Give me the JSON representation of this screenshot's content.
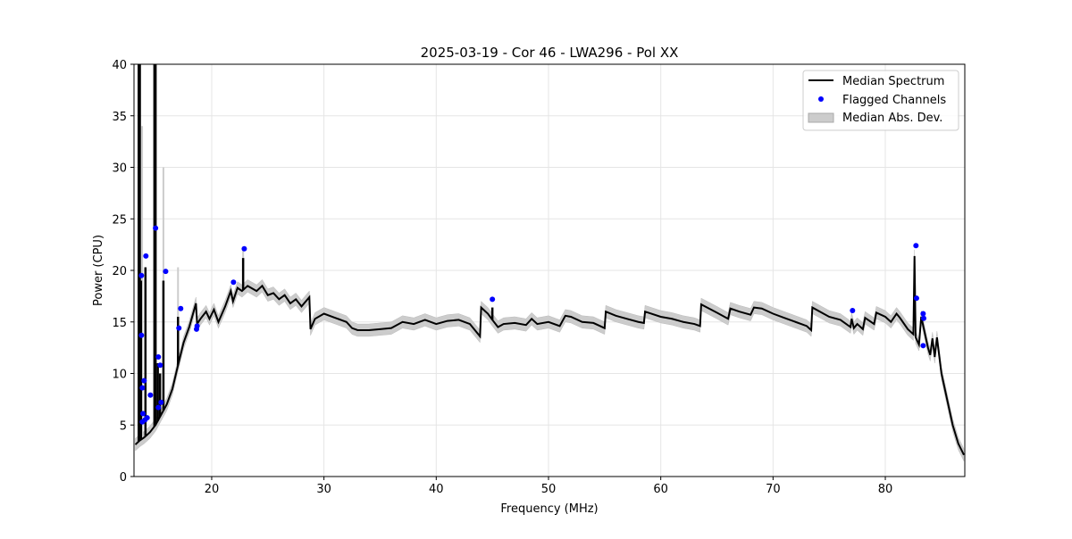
{
  "chart_data": {
    "type": "line",
    "title": "2025-03-19 - Cor 46 - LWA296 - Pol XX",
    "xlabel": "Frequency (MHz)",
    "ylabel": "Power (CPU)",
    "xlim": [
      13.08,
      87.08
    ],
    "ylim": [
      0,
      40
    ],
    "xticks": [
      20,
      30,
      40,
      50,
      60,
      70,
      80
    ],
    "yticks": [
      0,
      5,
      10,
      15,
      20,
      25,
      30,
      35,
      40
    ],
    "grid": true,
    "legend_position": "top-right",
    "legend": [
      "Median Spectrum",
      "Flagged Channels",
      "Median Abs. Dev."
    ],
    "colors": {
      "median": "#000000",
      "flagged": "#0000ff",
      "mad": "#cccccc"
    },
    "mad_halfwidth": 0.6,
    "series": [
      {
        "name": "Median Spectrum",
        "points": [
          [
            13.2,
            3.1
          ],
          [
            13.6,
            3.5
          ],
          [
            14.0,
            3.8
          ],
          [
            14.5,
            4.3
          ],
          [
            15.0,
            5.0
          ],
          [
            15.5,
            6.0
          ],
          [
            16.0,
            7.0
          ],
          [
            16.5,
            8.5
          ],
          [
            17.0,
            10.8
          ],
          [
            17.5,
            13.0
          ],
          [
            18.0,
            14.5
          ],
          [
            18.6,
            16.8
          ],
          [
            18.7,
            14.8
          ],
          [
            19.0,
            15.3
          ],
          [
            19.5,
            16.0
          ],
          [
            19.8,
            15.3
          ],
          [
            20.2,
            16.2
          ],
          [
            20.6,
            15.0
          ],
          [
            21.2,
            16.5
          ],
          [
            21.7,
            18.0
          ],
          [
            21.9,
            17.0
          ],
          [
            22.3,
            18.3
          ],
          [
            22.7,
            18.0
          ],
          [
            23.2,
            18.5
          ],
          [
            24,
            18.0
          ],
          [
            24.5,
            18.5
          ],
          [
            25,
            17.6
          ],
          [
            25.5,
            17.8
          ],
          [
            26,
            17.2
          ],
          [
            26.5,
            17.6
          ],
          [
            27,
            16.8
          ],
          [
            27.5,
            17.2
          ],
          [
            28,
            16.5
          ],
          [
            28.7,
            17.4
          ],
          [
            28.8,
            14.3
          ],
          [
            29.2,
            15.3
          ],
          [
            30,
            15.8
          ],
          [
            31,
            15.4
          ],
          [
            32,
            15.0
          ],
          [
            32.5,
            14.4
          ],
          [
            33,
            14.2
          ],
          [
            34,
            14.2
          ],
          [
            35,
            14.3
          ],
          [
            36,
            14.4
          ],
          [
            37,
            15.0
          ],
          [
            38,
            14.8
          ],
          [
            39,
            15.2
          ],
          [
            40,
            14.8
          ],
          [
            41,
            15.1
          ],
          [
            42,
            15.2
          ],
          [
            43,
            14.8
          ],
          [
            43.9,
            13.6
          ],
          [
            44.0,
            16.4
          ],
          [
            44.6,
            15.8
          ],
          [
            45.0,
            15.2
          ],
          [
            45.5,
            14.5
          ],
          [
            46,
            14.8
          ],
          [
            47,
            14.9
          ],
          [
            48,
            14.7
          ],
          [
            48.5,
            15.3
          ],
          [
            49,
            14.8
          ],
          [
            50,
            15.0
          ],
          [
            51,
            14.6
          ],
          [
            51.5,
            15.6
          ],
          [
            52,
            15.5
          ],
          [
            53,
            15.0
          ],
          [
            54,
            14.9
          ],
          [
            55,
            14.4
          ],
          [
            55.1,
            16.0
          ],
          [
            56,
            15.6
          ],
          [
            57,
            15.3
          ],
          [
            58,
            15.0
          ],
          [
            58.5,
            14.9
          ],
          [
            58.6,
            16.0
          ],
          [
            60,
            15.5
          ],
          [
            61,
            15.3
          ],
          [
            62,
            15.0
          ],
          [
            63,
            14.8
          ],
          [
            63.5,
            14.6
          ],
          [
            63.6,
            16.7
          ],
          [
            65,
            15.9
          ],
          [
            66,
            15.3
          ],
          [
            66.2,
            16.3
          ],
          [
            67,
            16.0
          ],
          [
            68,
            15.7
          ],
          [
            68.3,
            16.4
          ],
          [
            69,
            16.3
          ],
          [
            70,
            15.8
          ],
          [
            71,
            15.4
          ],
          [
            72,
            15.0
          ],
          [
            73,
            14.6
          ],
          [
            73.4,
            14.2
          ],
          [
            73.5,
            16.4
          ],
          [
            75,
            15.5
          ],
          [
            76,
            15.2
          ],
          [
            76.9,
            14.5
          ],
          [
            77,
            15.3
          ],
          [
            77.2,
            14.4
          ],
          [
            77.5,
            14.8
          ],
          [
            78,
            14.3
          ],
          [
            78.2,
            15.4
          ],
          [
            79,
            14.8
          ],
          [
            79.2,
            15.9
          ],
          [
            80,
            15.5
          ],
          [
            80.5,
            15.0
          ],
          [
            81,
            15.8
          ],
          [
            81.3,
            15.4
          ],
          [
            82,
            14.3
          ],
          [
            82.5,
            13.8
          ],
          [
            82.6,
            21.4
          ],
          [
            82.7,
            13.5
          ],
          [
            83.0,
            12.8
          ],
          [
            83.2,
            15.5
          ],
          [
            83.8,
            12.5
          ],
          [
            84.0,
            11.8
          ],
          [
            84.2,
            13.4
          ],
          [
            84.4,
            11.6
          ],
          [
            84.6,
            13.5
          ],
          [
            85,
            10
          ],
          [
            85.5,
            7.5
          ],
          [
            86,
            5
          ],
          [
            86.5,
            3.2
          ],
          [
            87.0,
            2.1
          ]
        ]
      },
      {
        "name": "Median spikes",
        "points": [
          [
            13.5,
            40
          ],
          [
            13.6,
            40
          ],
          [
            13.7,
            19.0
          ],
          [
            14.1,
            20.3
          ],
          [
            14.9,
            40
          ],
          [
            15.0,
            40
          ],
          [
            15.2,
            11.0
          ],
          [
            15.4,
            10.0
          ],
          [
            15.7,
            19.0
          ],
          [
            17.0,
            15.5
          ],
          [
            22.8,
            21.2
          ],
          [
            45.0,
            16.4
          ]
        ]
      },
      {
        "name": "MAD spikes",
        "points": [
          [
            13.8,
            34.0
          ],
          [
            15.7,
            30.0
          ],
          [
            17.0,
            20.3
          ],
          [
            22.8,
            22.0
          ]
        ]
      },
      {
        "name": "Flagged Channels",
        "points": [
          [
            13.74,
            19.5
          ],
          [
            14.14,
            21.4
          ],
          [
            15.0,
            24.1
          ],
          [
            15.9,
            19.9
          ],
          [
            13.74,
            13.7
          ],
          [
            13.98,
            9.3
          ],
          [
            13.82,
            8.6
          ],
          [
            14.54,
            7.9
          ],
          [
            15.25,
            11.6
          ],
          [
            15.41,
            10.8
          ],
          [
            15.49,
            7.2
          ],
          [
            15.25,
            6.7
          ],
          [
            13.88,
            6.1
          ],
          [
            13.82,
            5.3
          ],
          [
            14.06,
            5.5
          ],
          [
            14.25,
            5.7
          ],
          [
            17.24,
            16.3
          ],
          [
            17.08,
            14.4
          ],
          [
            18.7,
            14.6
          ],
          [
            18.65,
            14.3
          ],
          [
            21.94,
            18.85
          ],
          [
            22.9,
            22.1
          ],
          [
            45.0,
            17.2
          ],
          [
            77.08,
            16.1
          ],
          [
            82.73,
            22.4
          ],
          [
            82.78,
            17.3
          ],
          [
            83.37,
            15.8
          ],
          [
            83.42,
            15.35
          ],
          [
            83.37,
            12.7
          ]
        ]
      }
    ]
  }
}
